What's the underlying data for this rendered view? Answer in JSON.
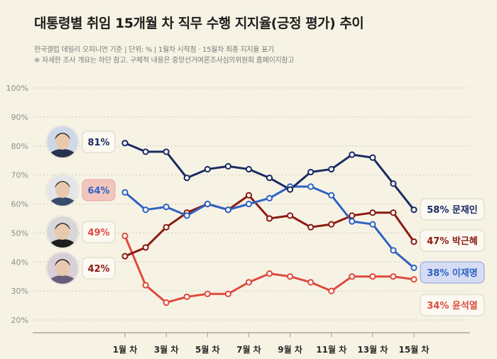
{
  "title": "대통령별 취임 15개월 차 직무 수행 지지율(긍정 평가) 추이",
  "subtitle": "한국갤럽 데일리 오피니언 기준 | 단위: % | 1월차 시작점 · 15월차 최종 지지율 표기",
  "note": "※ 자세한 조사 개요는 하단 참고. 구체적 내용은 중앙선거여론조사심의위원회 홈페이지참고",
  "chart_data": {
    "type": "line",
    "title": "대통령별 취임 15개월 차 직무 수행 지지율(긍정 평가) 추이",
    "x": [
      1,
      2,
      3,
      4,
      5,
      6,
      7,
      8,
      9,
      10,
      11,
      12,
      13,
      14,
      15
    ],
    "xticks": [
      1,
      3,
      5,
      7,
      9,
      11,
      13,
      15
    ],
    "xtick_labels": [
      "1월 차",
      "3월 차",
      "5월 차",
      "7월 차",
      "9월 차",
      "11월 차",
      "13월 차",
      "15월 차"
    ],
    "ylim": [
      20,
      100
    ],
    "yticks": [
      20,
      30,
      40,
      50,
      60,
      70,
      80,
      90,
      100
    ],
    "ytick_labels": [
      "20%",
      "30%",
      "40%",
      "50%",
      "60%",
      "70%",
      "80%",
      "90%",
      "100%"
    ],
    "grid": true,
    "series": [
      {
        "name": "문재인",
        "color": "#1b2a63",
        "start_label": "81%",
        "end_label": "58% 문재인",
        "values": [
          81,
          78,
          78,
          69,
          72,
          73,
          72,
          69,
          65,
          71,
          72,
          77,
          76,
          67,
          58
        ]
      },
      {
        "name": "이재명",
        "color": "#2f62c4",
        "start_label": "64%",
        "end_label": "38% 이재명",
        "values": [
          64,
          58,
          59,
          56,
          60,
          58,
          60,
          62,
          66,
          66,
          63,
          54,
          53,
          44,
          38
        ]
      },
      {
        "name": "박근혜",
        "color": "#8a1a12",
        "start_label": "42%",
        "end_label": "47% 박근혜",
        "values": [
          42,
          45,
          52,
          57,
          60,
          58,
          63,
          55,
          56,
          52,
          53,
          56,
          57,
          57,
          47
        ]
      },
      {
        "name": "윤석열",
        "color": "#de4a3f",
        "start_label": "49%",
        "end_label": "34% 윤석열",
        "values": [
          49,
          32,
          26,
          28,
          29,
          29,
          33,
          36,
          35,
          33,
          30,
          35,
          35,
          35,
          34
        ]
      }
    ]
  }
}
